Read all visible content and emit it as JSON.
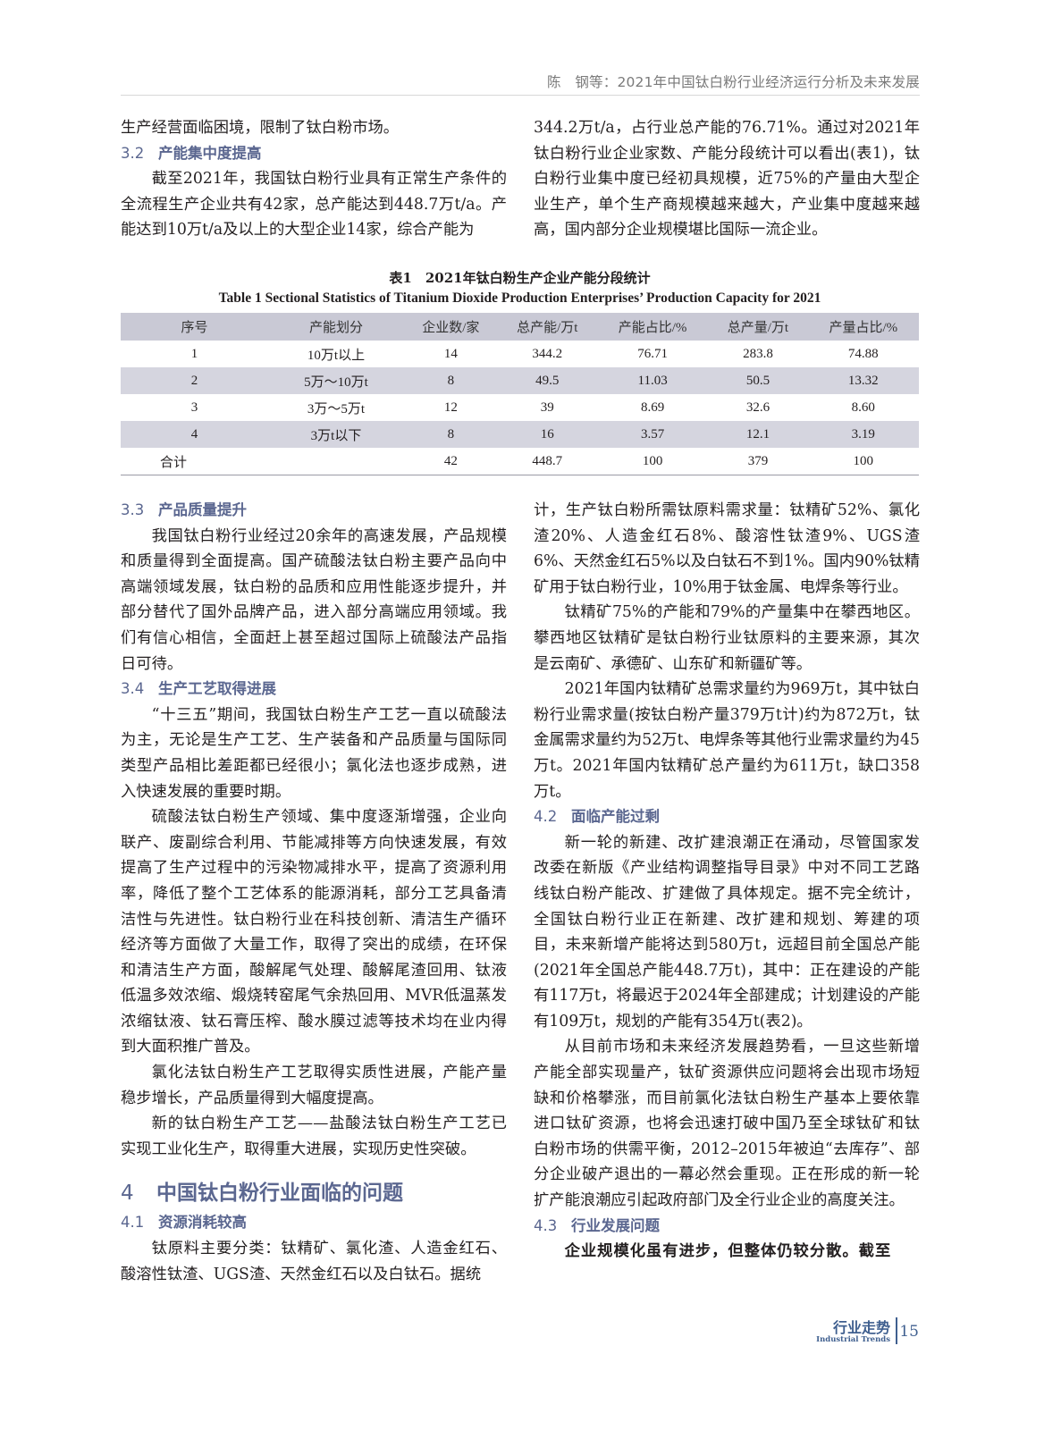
{
  "running_head": "陈　钢等：2021年中国钛白粉行业经济运行分析及未来发展",
  "columns_top": {
    "left": [
      {
        "type": "p",
        "text": "生产经营面临困境，限制了钛白粉市场。"
      },
      {
        "type": "h2",
        "num": "3.2",
        "text": "产能集中度提高"
      },
      {
        "type": "pi",
        "text": "截至2021年，我国钛白粉行业具有正常生产条件的全流程生产企业共有42家，总产能达到448.7万t/a。产能达到10万t/a及以上的大型企业14家，综合产能为"
      }
    ],
    "right": [
      {
        "type": "p",
        "text": "344.2万t/a，占行业总产能的76.71%。通过对2021年钛白粉行业企业家数、产能分段统计可以看出(表1)，钛白粉行业集中度已经初具规模，近75%的产量由大型企业生产，单个生产商规模越来越大，产业集中度越来越高，国内部分企业规模堪比国际一流企业。"
      }
    ]
  },
  "table": {
    "caption_cn": "表1　2021年钛白粉生产企业产能分段统计",
    "caption_en": "Table 1   Sectional Statistics of Titanium Dioxide Production Enterprises’ Production Capacity for 2021",
    "headers": [
      "序号",
      "产能划分",
      "企业数/家",
      "总产能/万t",
      "产能占比/%",
      "总产量/万t",
      "产量占比/%"
    ],
    "rows": [
      [
        "1",
        "10万t以上",
        "14",
        "344.2",
        "76.71",
        "283.8",
        "74.88"
      ],
      [
        "2",
        "5万～10万t",
        "8",
        "49.5",
        "11.03",
        "50.5",
        "13.32"
      ],
      [
        "3",
        "3万～5万t",
        "12",
        "39",
        "8.69",
        "32.6",
        "8.60"
      ],
      [
        "4",
        "3万t以下",
        "8",
        "16",
        "3.57",
        "12.1",
        "3.19"
      ],
      [
        "合计",
        "",
        "42",
        "448.7",
        "100",
        "379",
        "100"
      ]
    ]
  },
  "columns_bottom": {
    "left": [
      {
        "type": "h2",
        "num": "3.3",
        "text": "产品质量提升"
      },
      {
        "type": "pi",
        "text": "我国钛白粉行业经过20余年的高速发展，产品规模和质量得到全面提高。国产硫酸法钛白粉主要产品向中高端领域发展，钛白粉的品质和应用性能逐步提升，并部分替代了国外品牌产品，进入部分高端应用领域。我们有信心相信，全面赶上甚至超过国际上硫酸法产品指日可待。"
      },
      {
        "type": "h2",
        "num": "3.4",
        "text": "生产工艺取得进展"
      },
      {
        "type": "pi",
        "text": "“十三五”期间，我国钛白粉生产工艺一直以硫酸法为主，无论是生产工艺、生产装备和产品质量与国际同类型产品相比差距都已经很小；氯化法也逐步成熟，进入快速发展的重要时期。"
      },
      {
        "type": "pi",
        "text": "硫酸法钛白粉生产领域、集中度逐渐增强，企业向联产、废副综合利用、节能减排等方向快速发展，有效提高了生产过程中的污染物减排水平，提高了资源利用率，降低了整个工艺体系的能源消耗，部分工艺具备清洁性与先进性。钛白粉行业在科技创新、清洁生产循环经济等方面做了大量工作，取得了突出的成绩，在环保和清洁生产方面，酸解尾气处理、酸解尾渣回用、钛液低温多效浓缩、煅烧转窑尾气余热回用、MVR低温蒸发浓缩钛液、钛石膏压榨、酸水膜过滤等技术均在业内得到大面积推广普及。"
      },
      {
        "type": "pi",
        "text": "氯化法钛白粉生产工艺取得实质性进展，产能产量稳步增长，产品质量得到大幅度提高。"
      },
      {
        "type": "pi",
        "text": "新的钛白粉生产工艺——盐酸法钛白粉生产工艺已实现工业化生产，取得重大进展，实现历史性突破。"
      },
      {
        "type": "h1",
        "num": "4",
        "text": "中国钛白粉行业面临的问题"
      },
      {
        "type": "h2",
        "num": "4.1",
        "text": "资源消耗较高"
      },
      {
        "type": "pi",
        "text": "钛原料主要分类：钛精矿、氯化渣、人造金红石、酸溶性钛渣、UGS渣、天然金红石以及白钛石。据统"
      }
    ],
    "right": [
      {
        "type": "p",
        "text": "计，生产钛白粉所需钛原料需求量：钛精矿52%、氯化渣20%、人造金红石8%、酸溶性钛渣9%、UGS渣6%、天然金红石5%以及白钛石不到1%。国内90%钛精矿用于钛白粉行业，10%用于钛金属、电焊条等行业。"
      },
      {
        "type": "pi",
        "text": "钛精矿75%的产能和79%的产量集中在攀西地区。攀西地区钛精矿是钛白粉行业钛原料的主要来源，其次是云南矿、承德矿、山东矿和新疆矿等。"
      },
      {
        "type": "pi",
        "text": "2021年国内钛精矿总需求量约为969万t，其中钛白粉行业需求量(按钛白粉产量379万t计)约为872万t，钛金属需求量约为52万t、电焊条等其他行业需求量约为45万t。2021年国内钛精矿总产量约为611万t，缺口358万t。"
      },
      {
        "type": "h2",
        "num": "4.2",
        "text": "面临产能过剩"
      },
      {
        "type": "pi",
        "text": "新一轮的新建、改扩建浪潮正在涌动，尽管国家发改委在新版《产业结构调整指导目录》中对不同工艺路线钛白粉产能改、扩建做了具体规定。据不完全统计，全国钛白粉行业正在新建、改扩建和规划、筹建的项目，未来新增产能将达到580万t，远超目前全国总产能(2021年全国总产能448.7万t)，其中：正在建设的产能有117万t，将最迟于2024年全部建成；计划建设的产能有109万t，规划的产能有354万t(表2)。"
      },
      {
        "type": "pi",
        "text": "从目前市场和未来经济发展趋势看，一旦这些新增产能全部实现量产，钛矿资源供应问题将会出现市场短缺和价格攀涨，而目前氯化法钛白粉生产基本上要依靠进口钛矿资源，也将会迅速打破中国乃至全球钛矿和钛白粉市场的供需平衡，2012–2015年被迫“去库存”、部分企业破产退出的一幕必然会重现。正在形成的新一轮扩产能浪潮应引起政府部门及全行业企业的高度关注。"
      },
      {
        "type": "h2",
        "num": "4.3",
        "text": "行业发展问题"
      },
      {
        "type": "pb",
        "text": "企业规模化虽有进步，但整体仍较分散。截至"
      }
    ]
  },
  "footer": {
    "section_cn": "行业走势",
    "section_en": "Industrial Trends",
    "page_number": "15"
  },
  "colors": {
    "heading": "#5b6790",
    "table_shade": "#d5d5df",
    "footer": "#3f5f8f"
  }
}
